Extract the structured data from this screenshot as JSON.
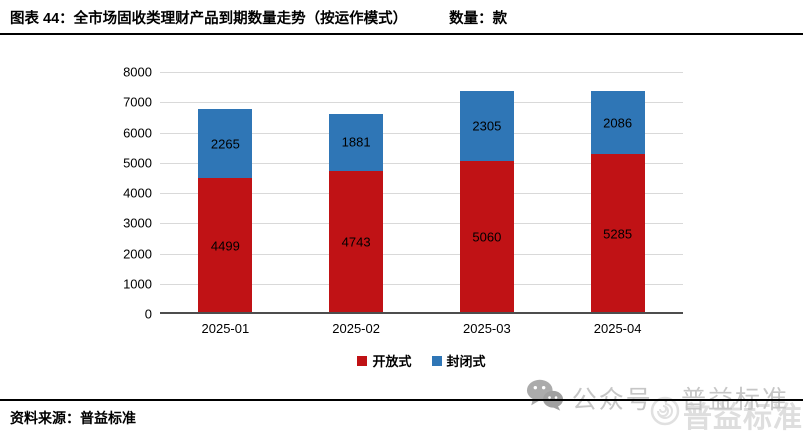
{
  "figure": {
    "title": "图表 44：全市场固收类理财产品到期数量走势（按运作模式）",
    "unit_label": "数量：款",
    "source": "资料来源：普益标准",
    "watermark": {
      "wechat_label": "公众号 · 普益标准",
      "brand": "普益标准",
      "icons": {
        "wechat": "wechat-icon",
        "seal": "spiral-seal-icon"
      }
    }
  },
  "chart_data": {
    "type": "bar",
    "stacked": true,
    "title": "全市场固收类理财产品到期数量走势（按运作模式）",
    "ylabel": "数量：款",
    "categories": [
      "2025-01",
      "2025-02",
      "2025-03",
      "2025-04"
    ],
    "series": [
      {
        "name": "开放式",
        "color": "#c01215",
        "values": [
          4499,
          4743,
          5060,
          5285
        ]
      },
      {
        "name": "封闭式",
        "color": "#2f76b6",
        "values": [
          2265,
          1881,
          2305,
          2086
        ]
      }
    ],
    "totals": [
      6764,
      6624,
      7365,
      7371
    ],
    "ylim": [
      0,
      8000
    ],
    "ytick_step": 1000,
    "grid": true,
    "gridline_color": "#d9d9d9",
    "axis_color": "#4d4d4d",
    "legend_position": "bottom",
    "bar_labels": true
  }
}
